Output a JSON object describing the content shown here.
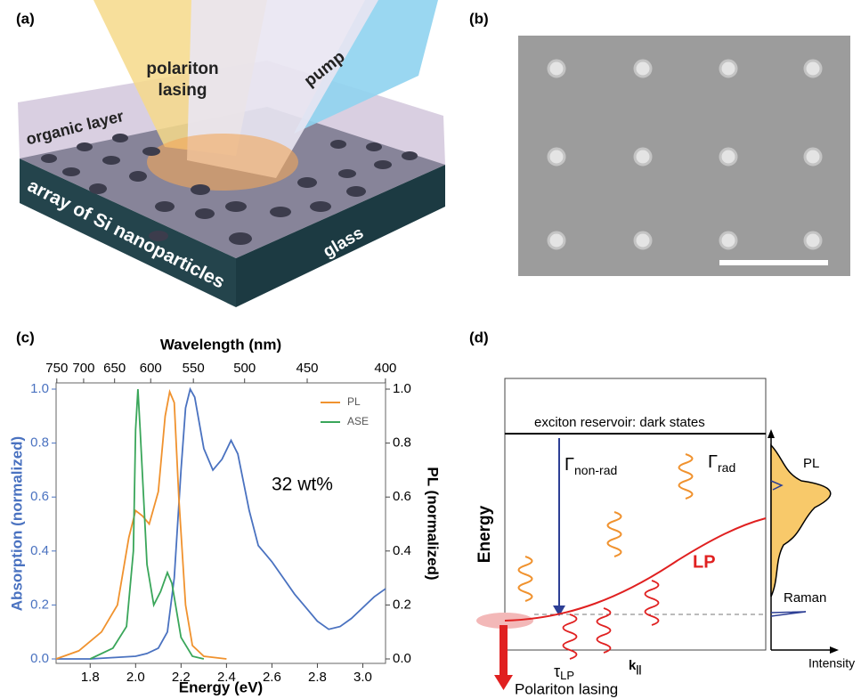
{
  "panels": {
    "a": {
      "label": "(a)",
      "polariton": "polariton",
      "lasing": "lasing",
      "pump": "pump",
      "organic": "organic layer",
      "array": "array of Si nanoparticles",
      "glass": "glass"
    },
    "b": {
      "label": "(b)"
    },
    "c": {
      "label": "(c)"
    },
    "d": {
      "label": "(d)",
      "reservoir": "exciton reservoir: dark states",
      "gamma_nonrad": {
        "symbol": "Γ",
        "subscript": "non-rad"
      },
      "gamma_rad": {
        "symbol": "Γ",
        "subscript": "rad"
      },
      "energy_axis": "Energy",
      "lp": "LP",
      "tau": {
        "symbol": "τ",
        "subscript": "LP"
      },
      "k": {
        "symbol": "k",
        "subscript": "||"
      },
      "lasing": "Polariton lasing",
      "pl": "PL",
      "raman": "Raman",
      "intensity": "Intensity"
    }
  },
  "chart_data": {
    "type": "line",
    "xlabel": "Energy (eV)",
    "x2label": "Wavelength (nm)",
    "ylabel": "Absorption (normalized)",
    "y2label": "PL (normalized)",
    "annotation": "32 wt%",
    "xlim": [
      1.65,
      3.1
    ],
    "xticks": [
      1.8,
      {
        "value": 2,
        "label": "2.0"
      },
      2.2,
      2.4,
      2.6,
      2.8,
      {
        "value": 3,
        "label": "3.0"
      }
    ],
    "x2ticks": [
      750,
      700,
      650,
      600,
      550,
      500,
      450,
      400
    ],
    "ylim": [
      0,
      1
    ],
    "yticks": [
      {
        "value": 0,
        "label": "0.0"
      },
      0.2,
      0.4,
      0.6,
      0.8,
      {
        "value": 1,
        "label": "1.0"
      }
    ],
    "y2lim": [
      0,
      1
    ],
    "y2ticks": [
      {
        "value": 0,
        "label": "0.0"
      },
      0.2,
      0.4,
      0.6,
      0.8,
      {
        "value": 1,
        "label": "1.0"
      }
    ],
    "ylabel_color": "#4a72c0",
    "legend": "upper right",
    "series": [
      {
        "color": "#4a72c0",
        "x": [
          1.65,
          1.8,
          1.9,
          2.0,
          2.05,
          2.1,
          2.14,
          2.17,
          2.2,
          2.22,
          2.24,
          2.26,
          2.3,
          2.34,
          2.38,
          2.42,
          2.45,
          2.5,
          2.54,
          2.57,
          2.6,
          2.65,
          2.7,
          2.75,
          2.8,
          2.85,
          2.9,
          2.95,
          3.0,
          3.05,
          3.1
        ],
        "values": [
          0.0,
          0.0,
          0.005,
          0.01,
          0.02,
          0.04,
          0.1,
          0.3,
          0.7,
          0.93,
          1.0,
          0.97,
          0.78,
          0.7,
          0.74,
          0.81,
          0.76,
          0.55,
          0.42,
          0.39,
          0.36,
          0.3,
          0.24,
          0.19,
          0.14,
          0.11,
          0.12,
          0.15,
          0.19,
          0.23,
          0.26
        ]
      },
      {
        "name": "PL",
        "color": "#f0922e",
        "axis": "y2",
        "x": [
          1.65,
          1.75,
          1.85,
          1.92,
          1.97,
          2.0,
          2.03,
          2.06,
          2.1,
          2.13,
          2.15,
          2.17,
          2.19,
          2.22,
          2.25,
          2.3,
          2.4
        ],
        "values": [
          0.0,
          0.03,
          0.1,
          0.2,
          0.45,
          0.55,
          0.53,
          0.5,
          0.62,
          0.9,
          0.99,
          0.95,
          0.6,
          0.2,
          0.05,
          0.01,
          0.0
        ]
      },
      {
        "name": "ASE",
        "color": "#3aa65a",
        "axis": "y2",
        "x": [
          1.8,
          1.9,
          1.96,
          1.99,
          2.0,
          2.01,
          2.02,
          2.05,
          2.08,
          2.11,
          2.14,
          2.16,
          2.2,
          2.25,
          2.3
        ],
        "values": [
          0.0,
          0.04,
          0.12,
          0.4,
          0.85,
          1.0,
          0.85,
          0.35,
          0.2,
          0.25,
          0.32,
          0.28,
          0.08,
          0.01,
          0.0
        ]
      }
    ]
  }
}
